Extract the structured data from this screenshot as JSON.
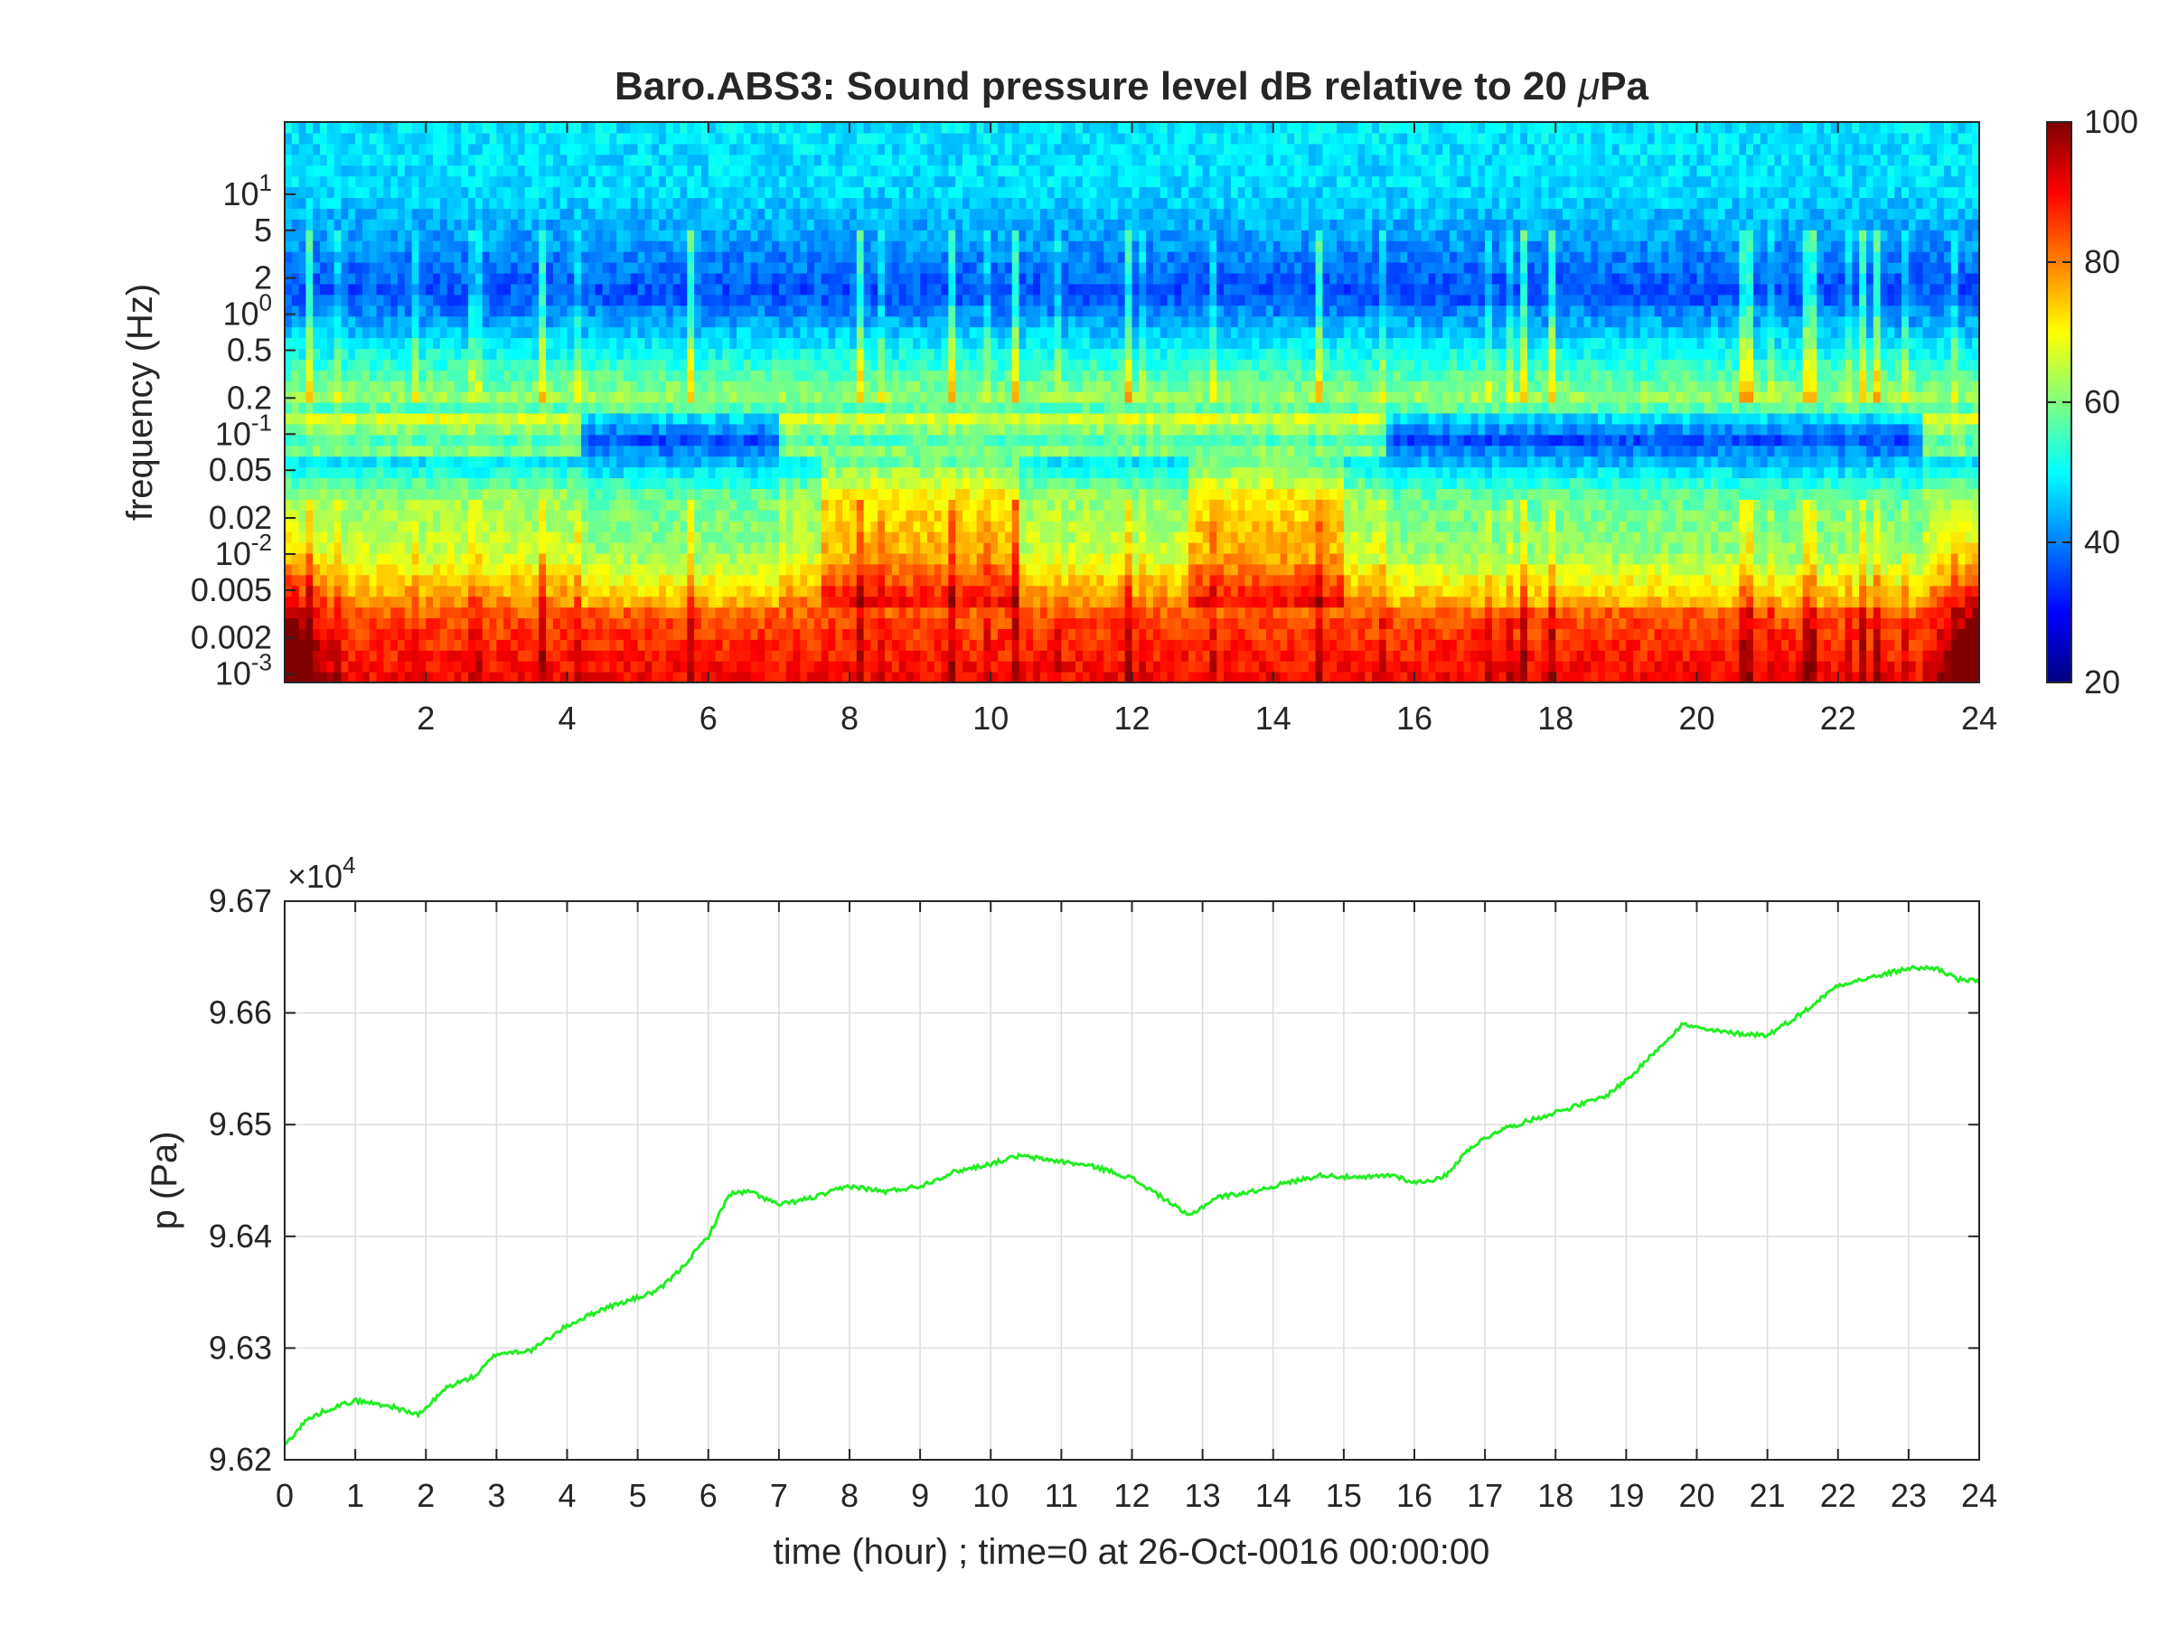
{
  "chart_data": [
    {
      "type": "heatmap",
      "title_main": "Baro.ABS3: Sound pressure level dB relative to 20 ",
      "title_mu": "μ",
      "title_end": "Pa",
      "ylabel": "frequency (Hz)",
      "xlabel": "",
      "xlim": [
        0,
        24
      ],
      "ylim": [
        0.00085,
        40
      ],
      "yscale": "log",
      "x_ticks": [
        "2",
        "4",
        "6",
        "8",
        "10",
        "12",
        "14",
        "16",
        "18",
        "20",
        "22",
        "24"
      ],
      "x_tick_values": [
        2,
        4,
        6,
        8,
        10,
        12,
        14,
        16,
        18,
        20,
        22,
        24
      ],
      "y_ticks": [
        {
          "value": 0.001,
          "base": "10",
          "exp": "-3"
        },
        {
          "value": 0.002,
          "label": "0.002"
        },
        {
          "value": 0.005,
          "label": "0.005"
        },
        {
          "value": 0.01,
          "base": "10",
          "exp": "-2"
        },
        {
          "value": 0.02,
          "label": "0.02"
        },
        {
          "value": 0.05,
          "label": "0.05"
        },
        {
          "value": 0.1,
          "base": "10",
          "exp": "-1"
        },
        {
          "value": 0.2,
          "label": "0.2"
        },
        {
          "value": 0.5,
          "label": "0.5"
        },
        {
          "value": 1,
          "base": "10",
          "exp": "0"
        },
        {
          "value": 2,
          "label": "2"
        },
        {
          "value": 5,
          "label": "5"
        },
        {
          "value": 10,
          "base": "10",
          "exp": "1"
        }
      ],
      "colorbar": {
        "colormap": "jet",
        "clim": [
          20,
          100
        ],
        "ticks": [
          "20",
          "40",
          "60",
          "80",
          "100"
        ],
        "tick_values": [
          20,
          40,
          60,
          80,
          100
        ]
      },
      "spl_profile_db": [
        {
          "f": 30,
          "db": 48
        },
        {
          "f": 10,
          "db": 47
        },
        {
          "f": 4,
          "db": 42
        },
        {
          "f": 1.5,
          "db": 36
        },
        {
          "f": 0.6,
          "db": 48
        },
        {
          "f": 0.2,
          "db": 62
        },
        {
          "f": 0.09,
          "db": 40
        },
        {
          "f": 0.03,
          "db": 62
        },
        {
          "f": 0.01,
          "db": 66
        },
        {
          "f": 0.003,
          "db": 84
        },
        {
          "f": 0.001,
          "db": 90
        }
      ],
      "quiet_bands_hours": [
        [
          4.2,
          7.0
        ],
        [
          15.6,
          23.2
        ]
      ],
      "active_bands_hours": [
        [
          7.6,
          10.4
        ],
        [
          12.8,
          15.0
        ]
      ]
    },
    {
      "type": "line",
      "xlabel": "time (hour) ; time=0 at 26-Oct-0016 00:00:00",
      "ylabel": "p (Pa)",
      "xlim": [
        0,
        24
      ],
      "ylim": [
        96200,
        96700
      ],
      "exponent_label_base": "×10",
      "exponent_label_exp": "4",
      "grid": true,
      "line_color": "#22ee22",
      "x_ticks": [
        "0",
        "1",
        "2",
        "3",
        "4",
        "5",
        "6",
        "7",
        "8",
        "9",
        "10",
        "11",
        "12",
        "13",
        "14",
        "15",
        "16",
        "17",
        "18",
        "19",
        "20",
        "21",
        "22",
        "23",
        "24"
      ],
      "x_tick_values": [
        0,
        1,
        2,
        3,
        4,
        5,
        6,
        7,
        8,
        9,
        10,
        11,
        12,
        13,
        14,
        15,
        16,
        17,
        18,
        19,
        20,
        21,
        22,
        23,
        24
      ],
      "y_ticks": [
        "9.62",
        "9.63",
        "9.64",
        "9.65",
        "9.66",
        "9.67"
      ],
      "y_tick_values": [
        96200,
        96300,
        96400,
        96500,
        96600,
        96700
      ],
      "series": [
        {
          "x": [
            0,
            0.3,
            0.6,
            1.0,
            1.5,
            1.9,
            2.3,
            2.7,
            3.0,
            3.5,
            4.0,
            4.5,
            5.0,
            5.3,
            5.6,
            6.0,
            6.3,
            6.6,
            7.0,
            7.5,
            8.0,
            8.5,
            9.0,
            9.5,
            10.0,
            10.4,
            11.0,
            11.5,
            12.0,
            12.5,
            12.8,
            13.2,
            13.7,
            14.2,
            14.7,
            15.2,
            15.7,
            16.0,
            16.4,
            16.8,
            17.2,
            17.7,
            18.2,
            18.7,
            19.1,
            19.4,
            19.8,
            20.1,
            20.5,
            21.0,
            21.5,
            22.0,
            22.5,
            23.0,
            23.4,
            23.7,
            24.0
          ],
          "y": [
            96213,
            96235,
            96245,
            96253,
            96248,
            96240,
            96265,
            96275,
            96295,
            96298,
            96320,
            96335,
            96345,
            96352,
            96370,
            96400,
            96438,
            96440,
            96428,
            96435,
            96445,
            96440,
            96445,
            96458,
            96465,
            96472,
            96467,
            96462,
            96452,
            96432,
            96418,
            96435,
            96440,
            96448,
            96455,
            96452,
            96455,
            96448,
            96452,
            96480,
            96495,
            96505,
            96515,
            96525,
            96545,
            96565,
            96590,
            96585,
            96582,
            96580,
            96600,
            96625,
            96632,
            96640,
            96640,
            96630,
            96628
          ]
        }
      ]
    }
  ]
}
